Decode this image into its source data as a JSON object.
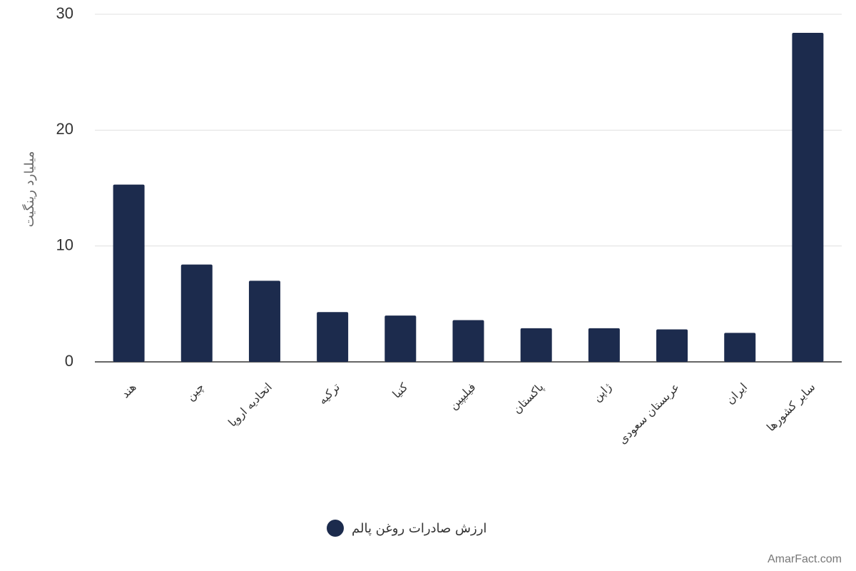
{
  "chart_data": {
    "type": "bar",
    "y_label": "میلیارد رینگیت",
    "categories": [
      "هند",
      "چین",
      "اتحادیه اروپا",
      "ترکیه",
      "کنیا",
      "فیلیپین",
      "پاکستان",
      "ژاپن",
      "عربستان سعودی",
      "ایران",
      "سایر کشورها"
    ],
    "series": [
      {
        "name": "ارزش صادرات روغن پالم",
        "color": "#1c2b4d",
        "values": [
          15.3,
          8.4,
          7.0,
          4.3,
          4.0,
          3.6,
          2.9,
          2.9,
          2.8,
          2.5,
          28.4
        ]
      }
    ],
    "ylim": [
      0,
      30
    ],
    "yticks": [
      0,
      10,
      20,
      30
    ],
    "grid": true,
    "watermark": "AmarFact.com"
  }
}
